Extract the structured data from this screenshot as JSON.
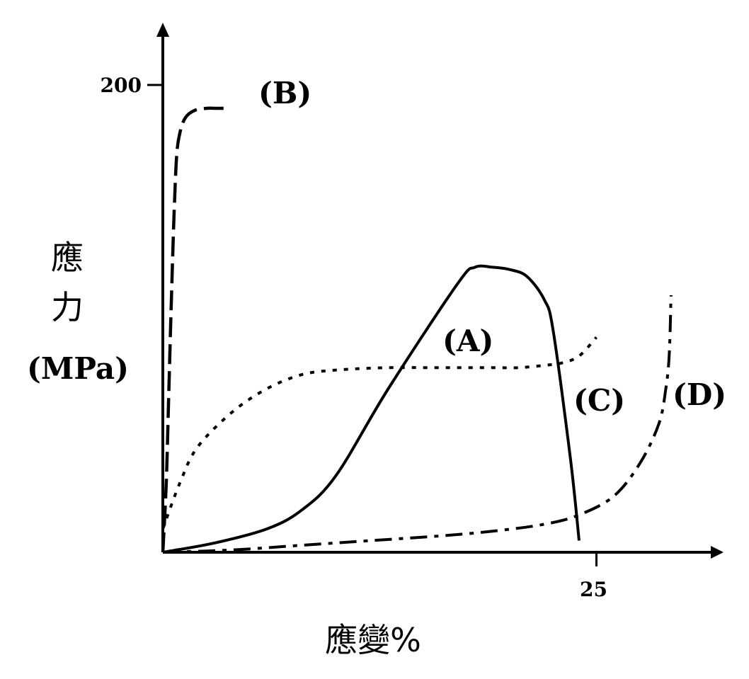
{
  "chart_data": {
    "type": "line",
    "title": "",
    "xlabel": "應變%",
    "ylabel": {
      "line1": "應",
      "line2": "力",
      "unit": "(MPa)"
    },
    "x_ticks": [
      25
    ],
    "y_ticks": [
      200
    ],
    "xlim": [
      0,
      32
    ],
    "ylim": [
      0,
      215
    ],
    "grid": false,
    "series": [
      {
        "name": "(A)",
        "style": "solid",
        "x": [
          0,
          3,
          6,
          8,
          10,
          13,
          17,
          18,
          19,
          20,
          21,
          22,
          22.5,
          23.5,
          24
        ],
        "y": [
          0,
          4,
          10,
          18,
          33,
          70,
          115,
          122,
          122,
          121,
          118,
          108,
          95,
          40,
          5
        ]
      },
      {
        "name": "(B)",
        "style": "dash",
        "x": [
          0,
          0.2,
          0.35,
          0.5,
          0.65,
          0.8,
          1.0,
          1.3,
          1.8,
          2.5,
          3.1,
          3.9
        ],
        "y": [
          0,
          30,
          70,
          110,
          145,
          170,
          180,
          186,
          189,
          190,
          190,
          190
        ]
      },
      {
        "name": "(C)",
        "style": "dot",
        "x": [
          0,
          1,
          2,
          4,
          6,
          8,
          10,
          13,
          16,
          19,
          20.5,
          22,
          23,
          24,
          25
        ],
        "y": [
          10,
          30,
          45,
          60,
          70,
          76,
          78,
          79,
          79,
          79,
          79,
          80,
          81,
          84,
          92
        ]
      },
      {
        "name": "(D)",
        "style": "dashdot",
        "x": [
          0,
          4,
          8,
          12,
          16,
          19,
          22,
          24,
          26,
          27.5,
          28.6,
          29,
          29.2,
          29.3
        ],
        "y": [
          0,
          1,
          3,
          5,
          7,
          9,
          12,
          16,
          24,
          38,
          55,
          70,
          85,
          110
        ]
      }
    ]
  }
}
